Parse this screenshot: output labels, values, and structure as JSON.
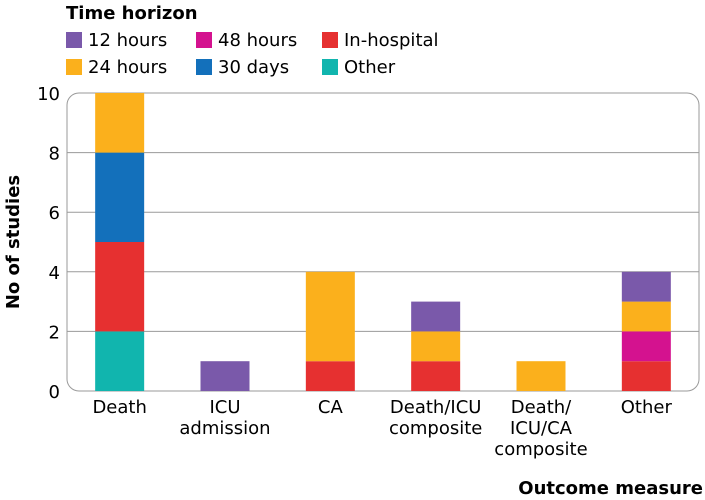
{
  "chart_data": {
    "type": "bar",
    "stacked": true,
    "legend": {
      "title": "Time horizon",
      "placement": "top-left"
    },
    "xlabel": "Outcome measure",
    "ylabel": "No of studies",
    "ylim": [
      0,
      10
    ],
    "yticks": [
      "0",
      "2",
      "4",
      "6",
      "8",
      "10"
    ],
    "grid": true,
    "categories": [
      [
        "Death"
      ],
      [
        "ICU",
        "admission"
      ],
      [
        "CA"
      ],
      [
        "Death/ICU",
        "composite"
      ],
      [
        "Death/",
        "ICU/CA",
        "composite"
      ],
      [
        "Other"
      ]
    ],
    "series": [
      {
        "name": "Other",
        "color": "#11b5ae",
        "values": [
          2,
          0,
          0,
          0,
          0,
          0
        ]
      },
      {
        "name": "In-hospital",
        "color": "#e63030",
        "values": [
          3,
          0,
          1,
          1,
          0,
          1
        ]
      },
      {
        "name": "48 hours",
        "color": "#d4128f",
        "values": [
          0,
          0,
          0,
          0,
          0,
          1
        ]
      },
      {
        "name": "30 days",
        "color": "#1370bb",
        "values": [
          3,
          0,
          0,
          0,
          0,
          0
        ]
      },
      {
        "name": "24 hours",
        "color": "#fbb01c",
        "values": [
          2,
          0,
          3,
          1,
          1,
          1
        ]
      },
      {
        "name": "12 hours",
        "color": "#7a59aa",
        "values": [
          0,
          1,
          0,
          1,
          0,
          1
        ]
      }
    ],
    "legend_order": [
      "12 hours",
      "48 hours",
      "In-hospital",
      "24 hours",
      "30 days",
      "Other"
    ]
  }
}
